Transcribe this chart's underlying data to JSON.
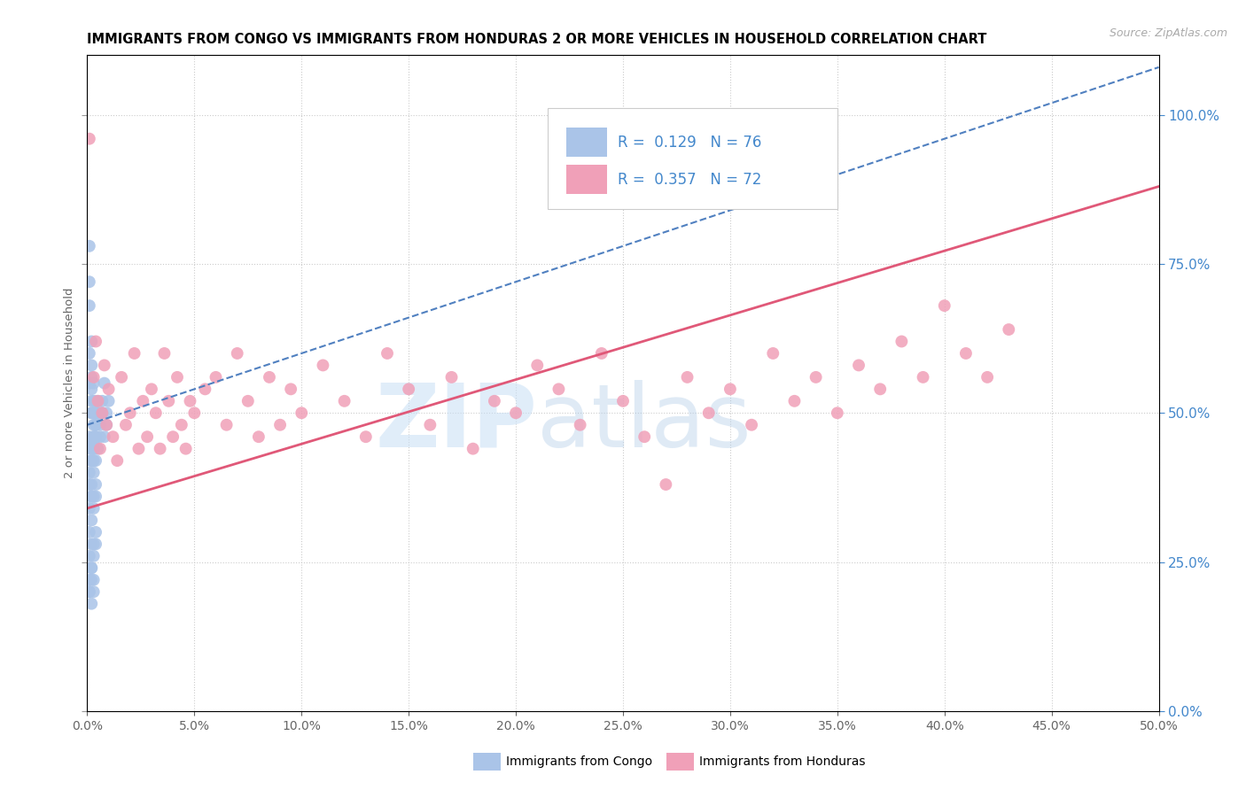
{
  "title": "IMMIGRANTS FROM CONGO VS IMMIGRANTS FROM HONDURAS 2 OR MORE VEHICLES IN HOUSEHOLD CORRELATION CHART",
  "source": "Source: ZipAtlas.com",
  "xlim": [
    0.0,
    0.5
  ],
  "ylim": [
    0.0,
    1.1
  ],
  "yticks": [
    0.0,
    0.25,
    0.5,
    0.75,
    1.0
  ],
  "xticks": [
    0.0,
    0.05,
    0.1,
    0.15,
    0.2,
    0.25,
    0.3,
    0.35,
    0.4,
    0.45,
    0.5
  ],
  "congo_R": 0.129,
  "congo_N": 76,
  "honduras_R": 0.357,
  "honduras_N": 72,
  "congo_color": "#aac4e8",
  "honduras_color": "#f0a0b8",
  "congo_line_color": "#5080c0",
  "honduras_line_color": "#e05878",
  "watermark1": "ZIP",
  "watermark2": "atlas",
  "legend_label_congo": "Immigrants from Congo",
  "legend_label_honduras": "Immigrants from Honduras",
  "right_axis_color": "#4488cc",
  "congo_x": [
    0.001,
    0.001,
    0.001,
    0.002,
    0.002,
    0.002,
    0.002,
    0.002,
    0.003,
    0.003,
    0.003,
    0.003,
    0.003,
    0.004,
    0.004,
    0.004,
    0.004,
    0.005,
    0.005,
    0.005,
    0.006,
    0.006,
    0.006,
    0.007,
    0.007,
    0.008,
    0.008,
    0.009,
    0.009,
    0.01,
    0.001,
    0.001,
    0.002,
    0.002,
    0.002,
    0.003,
    0.003,
    0.003,
    0.004,
    0.004,
    0.001,
    0.001,
    0.001,
    0.002,
    0.002,
    0.002,
    0.003,
    0.003,
    0.004,
    0.004,
    0.001,
    0.001,
    0.002,
    0.002,
    0.002,
    0.003,
    0.003,
    0.003,
    0.004,
    0.004,
    0.001,
    0.001,
    0.001,
    0.002,
    0.002,
    0.002,
    0.003,
    0.003,
    0.004,
    0.004,
    0.001,
    0.001,
    0.002,
    0.002,
    0.003,
    0.003
  ],
  "congo_y": [
    0.78,
    0.72,
    0.6,
    0.58,
    0.54,
    0.52,
    0.5,
    0.62,
    0.55,
    0.5,
    0.48,
    0.45,
    0.42,
    0.5,
    0.48,
    0.52,
    0.46,
    0.5,
    0.52,
    0.44,
    0.5,
    0.48,
    0.46,
    0.5,
    0.52,
    0.55,
    0.46,
    0.5,
    0.48,
    0.52,
    0.68,
    0.55,
    0.56,
    0.5,
    0.42,
    0.52,
    0.46,
    0.44,
    0.5,
    0.46,
    0.46,
    0.44,
    0.4,
    0.42,
    0.44,
    0.38,
    0.44,
    0.46,
    0.48,
    0.42,
    0.38,
    0.34,
    0.36,
    0.32,
    0.36,
    0.4,
    0.36,
    0.34,
    0.38,
    0.36,
    0.3,
    0.26,
    0.2,
    0.28,
    0.24,
    0.22,
    0.28,
    0.26,
    0.3,
    0.28,
    0.22,
    0.2,
    0.18,
    0.24,
    0.2,
    0.22
  ],
  "honduras_x": [
    0.001,
    0.003,
    0.004,
    0.005,
    0.006,
    0.007,
    0.008,
    0.009,
    0.01,
    0.012,
    0.014,
    0.016,
    0.018,
    0.02,
    0.022,
    0.024,
    0.026,
    0.028,
    0.03,
    0.032,
    0.034,
    0.036,
    0.038,
    0.04,
    0.042,
    0.044,
    0.046,
    0.048,
    0.05,
    0.055,
    0.06,
    0.065,
    0.07,
    0.075,
    0.08,
    0.085,
    0.09,
    0.095,
    0.1,
    0.11,
    0.12,
    0.13,
    0.14,
    0.15,
    0.16,
    0.17,
    0.18,
    0.19,
    0.2,
    0.21,
    0.22,
    0.23,
    0.24,
    0.25,
    0.26,
    0.27,
    0.28,
    0.29,
    0.3,
    0.31,
    0.32,
    0.33,
    0.34,
    0.35,
    0.36,
    0.37,
    0.38,
    0.39,
    0.4,
    0.41,
    0.42,
    0.43
  ],
  "honduras_y": [
    0.96,
    0.56,
    0.62,
    0.52,
    0.44,
    0.5,
    0.58,
    0.48,
    0.54,
    0.46,
    0.42,
    0.56,
    0.48,
    0.5,
    0.6,
    0.44,
    0.52,
    0.46,
    0.54,
    0.5,
    0.44,
    0.6,
    0.52,
    0.46,
    0.56,
    0.48,
    0.44,
    0.52,
    0.5,
    0.54,
    0.56,
    0.48,
    0.6,
    0.52,
    0.46,
    0.56,
    0.48,
    0.54,
    0.5,
    0.58,
    0.52,
    0.46,
    0.6,
    0.54,
    0.48,
    0.56,
    0.44,
    0.52,
    0.5,
    0.58,
    0.54,
    0.48,
    0.6,
    0.52,
    0.46,
    0.38,
    0.56,
    0.5,
    0.54,
    0.48,
    0.6,
    0.52,
    0.56,
    0.5,
    0.58,
    0.54,
    0.62,
    0.56,
    0.68,
    0.6,
    0.56,
    0.64
  ],
  "congo_line_x0": 0.0,
  "congo_line_y0": 0.48,
  "congo_line_x1": 0.5,
  "congo_line_y1": 1.08,
  "honduras_line_x0": 0.0,
  "honduras_line_y0": 0.34,
  "honduras_line_x1": 0.5,
  "honduras_line_y1": 0.88
}
